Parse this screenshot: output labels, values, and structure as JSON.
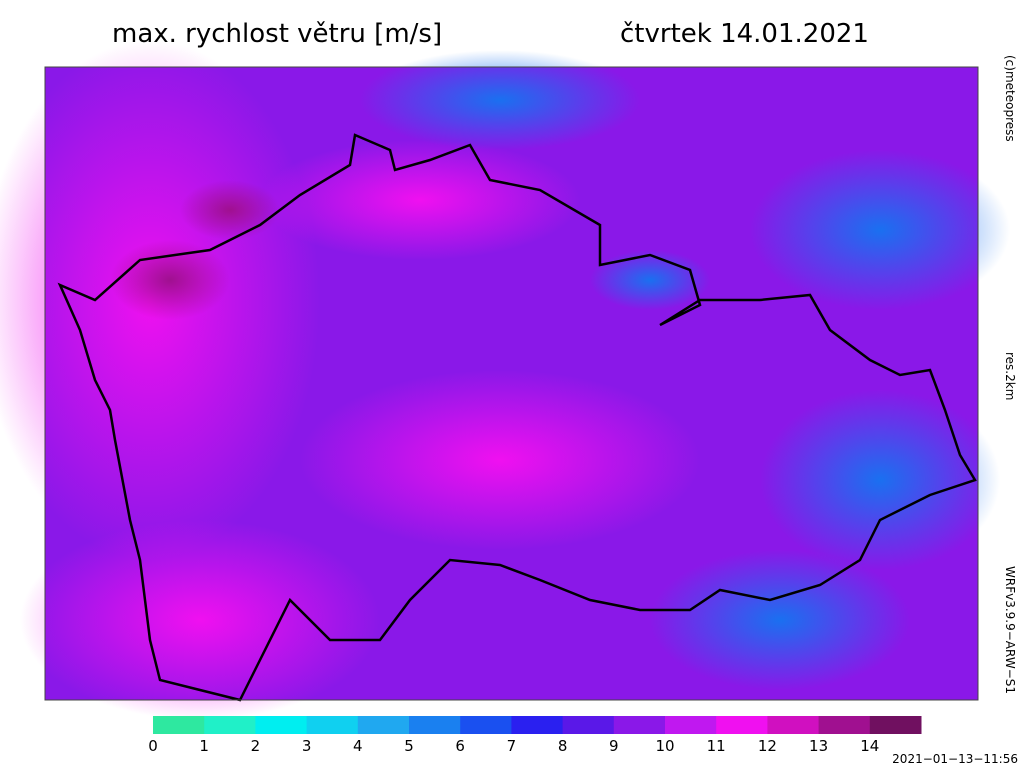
{
  "header": {
    "title": "max. rychlost větru [m/s]",
    "date": "čtvrtek 14.01.2021"
  },
  "side_labels": {
    "copyright": "(c)meteopress",
    "resolution": "res.2km",
    "model": "WRFv3.9.9−ARW−S1"
  },
  "legend": {
    "ticks": [
      0,
      1,
      2,
      3,
      4,
      5,
      6,
      7,
      8,
      9,
      10,
      11,
      12,
      13,
      14
    ],
    "colors": [
      "#2ee8a0",
      "#20f0c8",
      "#00eef0",
      "#10d0f0",
      "#20a8f0",
      "#1a80f0",
      "#1a50f0",
      "#2a20f0",
      "#5a18e8",
      "#8a18e8",
      "#c018f0",
      "#f010f0",
      "#d010c0",
      "#a01090",
      "#701060"
    ]
  },
  "footer": {
    "timestamp": "2021−01−13−11:56"
  }
}
